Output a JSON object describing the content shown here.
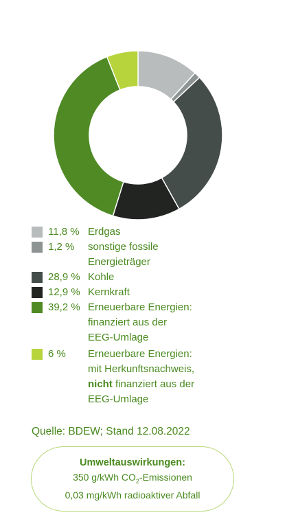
{
  "chart_data": {
    "type": "pie",
    "style": "donut",
    "slices": [
      {
        "value": 11.8,
        "percent_label": "11,8 %",
        "label": [
          "Erdgas"
        ],
        "color": "#b9bcbc"
      },
      {
        "value": 1.2,
        "percent_label": "1,2  %",
        "label": [
          "sonstige fossile",
          "Energieträger"
        ],
        "color": "#8e9393"
      },
      {
        "value": 28.9,
        "percent_label": "28,9 %",
        "label": [
          "Kohle"
        ],
        "color": "#454d4a"
      },
      {
        "value": 12.9,
        "percent_label": "12,9 %",
        "label": [
          "Kernkraft"
        ],
        "color": "#222422"
      },
      {
        "value": 39.2,
        "percent_label": "39,2 %",
        "label": [
          "Erneuerbare Energien:",
          "finanziert aus der",
          "EEG-Umlage"
        ],
        "color": "#4f8a25"
      },
      {
        "value": 6,
        "percent_label": "6 %",
        "label": [
          "Erneuerbare Energien:",
          "mit Herkunftsnachweis,",
          "nicht finanziert aus der",
          "EEG-Umlage"
        ],
        "bold_word": "nicht",
        "color": "#b7d43c"
      }
    ]
  },
  "source": "Quelle: BDEW; Stand 12.08.2022",
  "environment": {
    "title": "Umweltauswirkungen:",
    "co2_value": "350 g/kWh CO",
    "co2_sub": "2",
    "co2_suffix": "-Emissionen",
    "waste": "0,03 mg/kWh radioaktiver Abfall"
  }
}
